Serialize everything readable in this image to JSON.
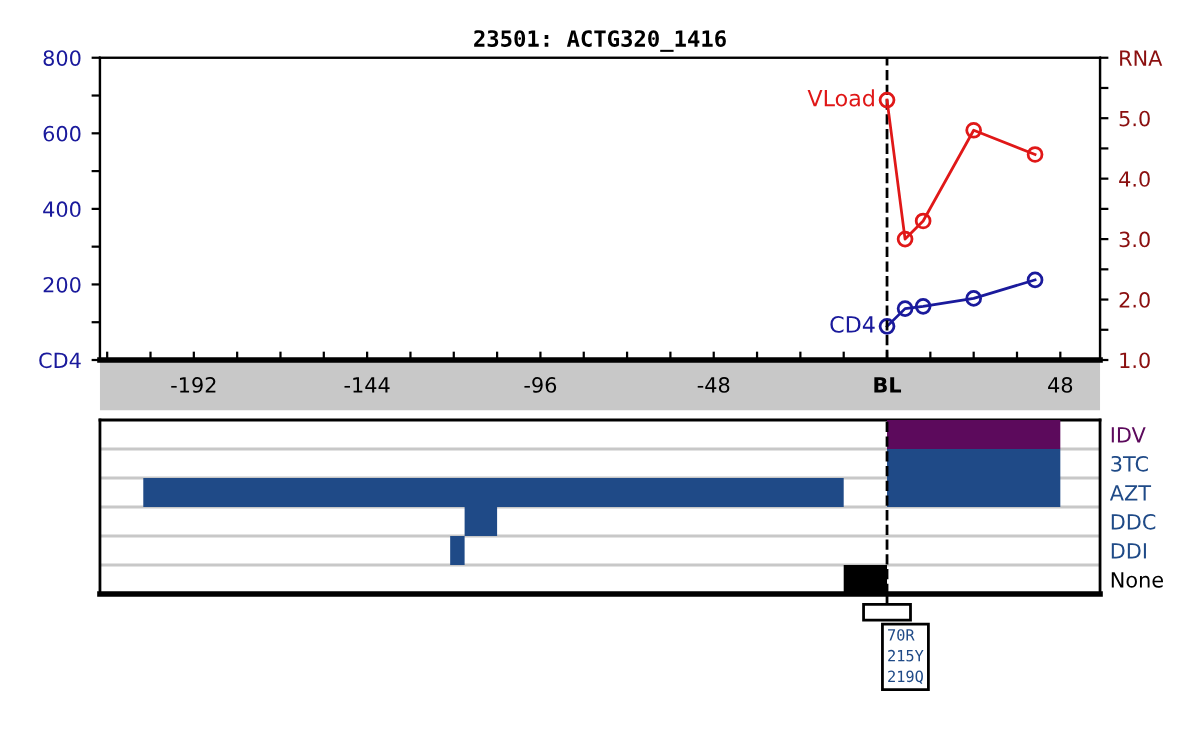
{
  "chart_data": [
    {
      "type": "line",
      "title": "23501: ACTG320_1416",
      "marker": "circle",
      "line_style": "solid",
      "xlim": [
        -218,
        59
      ],
      "xticks": [
        {
          "value": -216,
          "label": null
        },
        {
          "value": -204,
          "label": null
        },
        -192,
        {
          "value": -180,
          "label": null
        },
        {
          "value": -168,
          "label": null
        },
        {
          "value": -156,
          "label": null
        },
        -144,
        {
          "value": -132,
          "label": null
        },
        {
          "value": -120,
          "label": null
        },
        {
          "value": -108,
          "label": null
        },
        -96,
        {
          "value": -84,
          "label": null
        },
        {
          "value": -72,
          "label": null
        },
        {
          "value": -60,
          "label": null
        },
        -48,
        {
          "value": -36,
          "label": null
        },
        {
          "value": -24,
          "label": null
        },
        {
          "value": -12,
          "label": null
        },
        {
          "value": 0,
          "label": "BL"
        },
        {
          "value": 12,
          "label": null
        },
        {
          "value": 24,
          "label": null
        },
        {
          "value": 36,
          "label": null
        },
        48
      ],
      "ylim": [
        0,
        800
      ],
      "yticks": [
        {
          "value": 0,
          "label": "CD4"
        },
        {
          "value": 100,
          "label": null
        },
        200,
        {
          "value": 300,
          "label": null
        },
        400,
        {
          "value": 500,
          "label": null
        },
        600,
        {
          "value": 700,
          "label": null
        },
        800
      ],
      "y2lim": [
        1.0,
        6.0
      ],
      "y2ticks": [
        {
          "value": 1.0,
          "label": "1.0"
        },
        {
          "value": 1.5,
          "label": null
        },
        {
          "value": 2.0,
          "label": "2.0"
        },
        {
          "value": 2.5,
          "label": null
        },
        {
          "value": 3.0,
          "label": "3.0"
        },
        {
          "value": 3.5,
          "label": null
        },
        {
          "value": 4.0,
          "label": "4.0"
        },
        {
          "value": 4.5,
          "label": null
        },
        {
          "value": 5.0,
          "label": "5.0"
        },
        {
          "value": 5.5,
          "label": null
        },
        {
          "value": 6.0,
          "label": "RNA"
        }
      ],
      "series": [
        {
          "name": "VLoad",
          "color": "#e01818",
          "axis": "y2",
          "x": [
            0,
            5,
            10,
            24,
            41
          ],
          "values": [
            5.3,
            3.0,
            3.3,
            4.8,
            4.4
          ]
        },
        {
          "name": "CD4",
          "color": "#1a1a9c",
          "axis": "y",
          "x": [
            0,
            5,
            10,
            24,
            41
          ],
          "values": [
            89,
            136,
            142,
            163,
            212
          ]
        }
      ],
      "ref_lines": [
        {
          "axis": "x",
          "value": 0,
          "color": "#000000",
          "line_style": "dashed"
        }
      ]
    },
    {
      "type": "bar",
      "orientation": "horizontal",
      "tick_labels": "y",
      "grid": "y",
      "xlim": [
        -218,
        59
      ],
      "categories": [
        "IDV",
        "3TC",
        "AZT",
        "DDC",
        "DDI",
        "None"
      ],
      "series": [
        {
          "values": [
            null,
            null,
            194,
            9,
            4,
            12
          ],
          "base": [
            null,
            null,
            -206,
            -117,
            -121,
            -12
          ],
          "colors": [
            null,
            null,
            "#1f4a87",
            "#1f4a87",
            "#1f4a87",
            "#000000"
          ]
        },
        {
          "values": [
            48,
            48,
            48,
            null,
            null,
            null
          ],
          "base": [
            0,
            0,
            0,
            null,
            null,
            null
          ],
          "colors": [
            "#5c0a5c",
            "#1f4a87",
            "#1f4a87",
            null,
            null,
            null
          ]
        }
      ],
      "ref_lines": [
        {
          "axis": "x",
          "value": 0,
          "color": "#000000",
          "line_style": "dashed"
        }
      ],
      "annotations": [
        "70R\n215Y\n219Q"
      ]
    }
  ]
}
